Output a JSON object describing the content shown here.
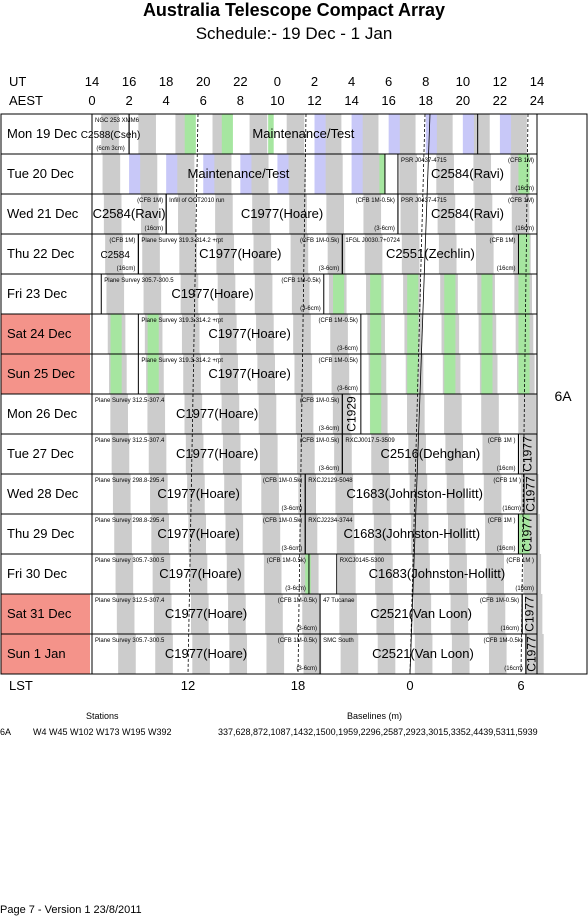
{
  "title": "Australia Telescope Compact Array",
  "subtitle": "Schedule:- 19 Dec - 1  Jan",
  "axes": {
    "ut_label": "UT",
    "aest_label": "AEST",
    "lst_label": "LST",
    "ut_ticks": [
      "14",
      "16",
      "18",
      "20",
      "22",
      "0",
      "2",
      "4",
      "6",
      "8",
      "10",
      "12",
      "14"
    ],
    "aest_ticks": [
      "0",
      "2",
      "4",
      "6",
      "8",
      "10",
      "12",
      "14",
      "16",
      "18",
      "20",
      "22",
      "24"
    ],
    "lst_ticks": [
      "12",
      "18",
      "0",
      "6"
    ]
  },
  "config_label": "6A",
  "days": [
    {
      "label": "Mon  19 Dec",
      "weekend": false
    },
    {
      "label": "Tue  20 Dec",
      "weekend": false
    },
    {
      "label": "Wed  21 Dec",
      "weekend": false
    },
    {
      "label": "Thu  22 Dec",
      "weekend": false
    },
    {
      "label": "Fri   23 Dec",
      "weekend": false
    },
    {
      "label": "Sat  24 Dec",
      "weekend": true
    },
    {
      "label": "Sun  25 Dec",
      "weekend": true
    },
    {
      "label": "Mon  26 Dec",
      "weekend": false
    },
    {
      "label": "Tue  27 Dec",
      "weekend": false
    },
    {
      "label": "Wed  28 Dec",
      "weekend": false
    },
    {
      "label": "Thu  29 Dec",
      "weekend": false
    },
    {
      "label": "Fri   30 Dec",
      "weekend": false
    },
    {
      "label": "Sat   31 Dec",
      "weekend": true
    },
    {
      "label": "Sun   1  Jan",
      "weekend": true
    }
  ],
  "rows": [
    {
      "blocks": [
        {
          "s": 0,
          "e": 2,
          "main": "C2588(Cseh)",
          "note": "NGC 253 XMM6",
          "sub": "(6cm 3cm)"
        },
        {
          "s": 2,
          "e": 20.8,
          "main": "Maintenance/Test",
          "note": "",
          "sub": ""
        }
      ]
    },
    {
      "blocks": [
        {
          "s": 0,
          "e": 15.8,
          "main": "Maintenance/Test",
          "note": "",
          "sub": ""
        },
        {
          "s": 16.5,
          "e": 24,
          "main": "C2584(Ravi)",
          "note": "PSR J0437-4715",
          "cfb": "(CFB 1M)",
          "sub": "(16cm)"
        }
      ]
    },
    {
      "blocks": [
        {
          "s": 0,
          "e": 4,
          "main": "C2584(Ravi)",
          "note": "",
          "cfb": "(CFB 1M)",
          "sub": "(16cm)"
        },
        {
          "s": 4,
          "e": 16.5,
          "main": "C1977(Hoare)",
          "note": "Infill of OCT2010 run",
          "cfb": "(CFB 1M-0.5k)",
          "sub": "(3-6cm)"
        },
        {
          "s": 16.5,
          "e": 24,
          "main": "C2584(Ravi)",
          "note": "PSR J0437-4715",
          "cfb": "(CFB 1M)",
          "sub": "(16cm)"
        }
      ]
    },
    {
      "blocks": [
        {
          "s": 0,
          "e": 2.5,
          "main": "C2584",
          "note": "",
          "cfb": "(CFB 1M)",
          "sub": "(16cm)"
        },
        {
          "s": 2.5,
          "e": 13.5,
          "main": "C1977(Hoare)",
          "note": "Plane Survey 319.3-314.2 +rpt",
          "cfb": "(CFB 1M-0.5k)",
          "sub": "(3-6cm)"
        },
        {
          "s": 13.5,
          "e": 23,
          "main": "C2551(Zechlin)",
          "note": "1FGL J0030.7+0724",
          "cfb": "(CFB 1M)",
          "sub": "(16cm)"
        }
      ]
    },
    {
      "blocks": [
        {
          "s": 0.5,
          "e": 12.5,
          "main": "C1977(Hoare)",
          "note": "Plane Survey 305.7-300.5",
          "cfb": "(CFB 1M-0.5k)",
          "sub": "(3-6cm)"
        }
      ]
    },
    {
      "blocks": [
        {
          "s": 2.5,
          "e": 14.5,
          "main": "C1977(Hoare)",
          "note": "Plane Survey 319.3-314.2 +rpt",
          "cfb": "(CFB 1M-0.5k)",
          "sub": "(3-6cm)"
        }
      ]
    },
    {
      "blocks": [
        {
          "s": 2.5,
          "e": 14.5,
          "main": "C1977(Hoare)",
          "note": "Plane Survey 319.3-314.2 +rpt",
          "cfb": "(CFB 1M-0.5k)",
          "sub": "(3-6cm)"
        }
      ]
    },
    {
      "blocks": [
        {
          "s": 0,
          "e": 13.5,
          "main": "C1977(Hoare)",
          "note": "Plane Survey 312.5-307.4",
          "cfb": "(CFB 1M-0.5k)",
          "sub": "(3-6cm)"
        },
        {
          "s": 13.5,
          "e": 14.5,
          "main": "C1929",
          "note": "",
          "sub": "",
          "vertical": true
        }
      ]
    },
    {
      "blocks": [
        {
          "s": 0,
          "e": 13.5,
          "main": "C1977(Hoare)",
          "note": "Plane Survey 312.5-307.4",
          "cfb": "(CFB 1M-0.5k)",
          "sub": "(3-6cm)"
        },
        {
          "s": 13.5,
          "e": 23,
          "main": "C2516(Dehghan)",
          "note": "RXCJ0017.5-3509",
          "cfb": "(CFB 1M )",
          "sub": "(16cm)"
        },
        {
          "s": 23,
          "e": 24,
          "main": "C1977",
          "note": "",
          "sub": "",
          "vertical": true
        }
      ]
    },
    {
      "blocks": [
        {
          "s": 0,
          "e": 11.5,
          "main": "C1977(Hoare)",
          "note": "Plane Survey 298.8-295.4",
          "cfb": "(CFB 1M-0.5k)",
          "sub": "(3-6cm)"
        },
        {
          "s": 11.5,
          "e": 23.3,
          "main": "C1683(Johnston-Hollitt)",
          "note": "RXCJ2129-5048",
          "cfb": "(CFB 1M )",
          "sub": "(16cm)"
        },
        {
          "s": 23.3,
          "e": 24,
          "main": "C1977",
          "note": "",
          "sub": "",
          "vertical": true
        }
      ]
    },
    {
      "blocks": [
        {
          "s": 0,
          "e": 11.5,
          "main": "C1977(Hoare)",
          "note": "Plane Survey 298.8-295.4",
          "cfb": "(CFB 1M-0.5k)",
          "sub": "(3-6cm)"
        },
        {
          "s": 11.5,
          "e": 23,
          "main": "C1683(Johnston-Hollitt)",
          "note": "RXCJ2234-3744",
          "cfb": "(CFB 1M )",
          "sub": "(16cm)"
        },
        {
          "s": 23,
          "e": 24,
          "main": "C1977",
          "note": "",
          "sub": "",
          "vertical": true
        }
      ]
    },
    {
      "blocks": [
        {
          "s": 0,
          "e": 11.7,
          "main": "C1977(Hoare)",
          "note": "Plane Survey 305.7-300.5",
          "cfb": "(CFB 1M-0.5k)",
          "sub": "(3-6cm)"
        },
        {
          "s": 13.2,
          "e": 24,
          "main": "C1683(Johnston-Hollitt)",
          "note": "RXCJ0145-5300",
          "cfb": "(CFB 1M )",
          "sub": "(16cm)"
        }
      ]
    },
    {
      "blocks": [
        {
          "s": 0,
          "e": 12.3,
          "main": "C1977(Hoare)",
          "note": "Plane Survey 312.5-307.4",
          "cfb": "(CFB 1M-0.5k)",
          "sub": "(3-6cm)"
        },
        {
          "s": 12.3,
          "e": 23.2,
          "main": "C2521(Van Loon)",
          "note": "47 Tucanae",
          "cfb": "(CFB 1M-0.5k)",
          "sub": "(16cm)"
        },
        {
          "s": 23.2,
          "e": 24,
          "main": "C1977",
          "note": "",
          "sub": "",
          "vertical": true
        }
      ]
    },
    {
      "blocks": [
        {
          "s": 0,
          "e": 12.3,
          "main": "C1977(Hoare)",
          "note": "Plane Survey 305.7-300.5",
          "cfb": "(CFB 1M-0.5k)",
          "sub": "(3-6cm)"
        },
        {
          "s": 12.3,
          "e": 23.4,
          "main": "C2521(Van Loon)",
          "note": "SMC South",
          "cfb": "(CFB 1M-0.5k)",
          "sub": "(16cm)"
        },
        {
          "s": 23.4,
          "e": 24,
          "main": "C1977",
          "note": "",
          "sub": "",
          "vertical": true
        }
      ]
    }
  ],
  "bands": {
    "gray_start": 0.5,
    "period": 2,
    "width": 0.95,
    "colors": {
      "gray": "#cccccc",
      "blue": "#c8c8f8",
      "green": "#a6e6a0",
      "weekend": "#f4938a"
    }
  },
  "footer": {
    "stations_label": "Stations",
    "baselines_label": "Baselines (m)",
    "config": "6A",
    "stations": "W4 W45 W102 W173 W195 W392",
    "baselines": "337,628,872,1087,1432,1500,1959,2296,2587,2923,3015,3352,4439,5311,5939"
  },
  "page_footer": "Page 7 - Version 1  23/8/2011"
}
